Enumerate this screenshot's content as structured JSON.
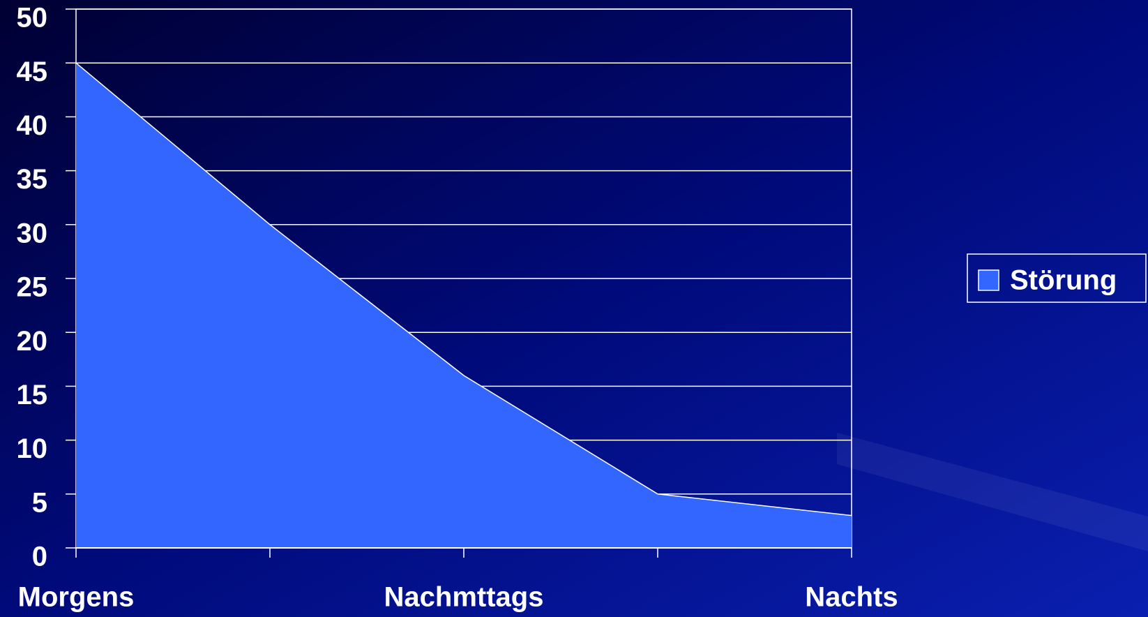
{
  "chart_data": {
    "type": "area",
    "categories": [
      "Morgens",
      null,
      "Nachmttags",
      null,
      "Nachts"
    ],
    "series": [
      {
        "name": "Störung",
        "color": "#3366ff",
        "values": [
          45,
          30,
          16,
          5,
          3
        ]
      }
    ],
    "ylim": [
      0,
      50
    ],
    "yticks": [
      0,
      5,
      10,
      15,
      20,
      25,
      30,
      35,
      40,
      45,
      50
    ],
    "grid": true,
    "legend": "right"
  }
}
